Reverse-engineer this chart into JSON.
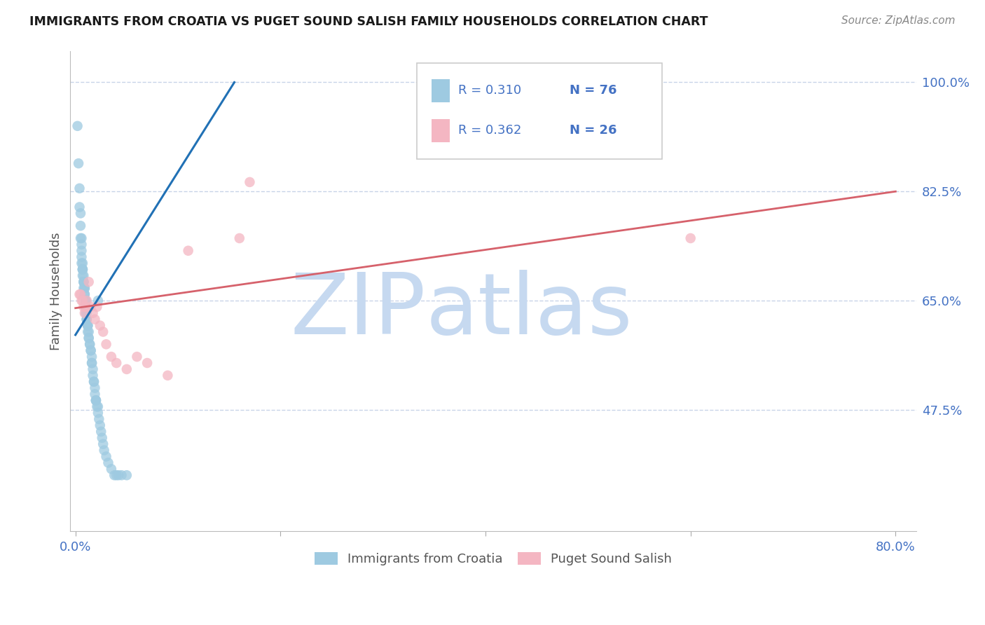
{
  "title": "IMMIGRANTS FROM CROATIA VS PUGET SOUND SALISH FAMILY HOUSEHOLDS CORRELATION CHART",
  "source": "Source: ZipAtlas.com",
  "ylabel": "Family Households",
  "ytick_vals": [
    0.475,
    0.65,
    0.825,
    1.0
  ],
  "ytick_labels": [
    "47.5%",
    "65.0%",
    "82.5%",
    "100.0%"
  ],
  "xtick_vals": [
    0.0,
    0.2,
    0.4,
    0.6,
    0.8
  ],
  "xtick_labels": [
    "0.0%",
    "",
    "",
    "",
    "80.0%"
  ],
  "xlim": [
    -0.005,
    0.82
  ],
  "ylim": [
    0.28,
    1.05
  ],
  "legend_r1": "R = 0.310",
  "legend_n1": "N = 76",
  "legend_r2": "R = 0.362",
  "legend_n2": "N = 26",
  "color_blue": "#9ecae1",
  "color_pink": "#f4b6c2",
  "color_blue_line": "#2171b5",
  "color_pink_line": "#d6616b",
  "color_axis_labels": "#4472c4",
  "watermark_zip_color": "#c6d9f0",
  "watermark_atlas_color": "#c6d9f0",
  "background_color": "#ffffff",
  "grid_color": "#c8d4e8",
  "blue_scatter_x": [
    0.002,
    0.003,
    0.004,
    0.004,
    0.005,
    0.005,
    0.005,
    0.006,
    0.006,
    0.006,
    0.006,
    0.006,
    0.007,
    0.007,
    0.007,
    0.007,
    0.007,
    0.008,
    0.008,
    0.008,
    0.008,
    0.008,
    0.009,
    0.009,
    0.009,
    0.009,
    0.01,
    0.01,
    0.01,
    0.01,
    0.01,
    0.011,
    0.011,
    0.011,
    0.011,
    0.012,
    0.012,
    0.012,
    0.012,
    0.013,
    0.013,
    0.013,
    0.014,
    0.014,
    0.015,
    0.015,
    0.016,
    0.016,
    0.016,
    0.017,
    0.017,
    0.018,
    0.018,
    0.019,
    0.019,
    0.02,
    0.02,
    0.02,
    0.021,
    0.022,
    0.022,
    0.023,
    0.024,
    0.025,
    0.026,
    0.027,
    0.028,
    0.03,
    0.032,
    0.035,
    0.038,
    0.04,
    0.042,
    0.045,
    0.05,
    0.022
  ],
  "blue_scatter_y": [
    0.93,
    0.87,
    0.83,
    0.8,
    0.79,
    0.77,
    0.75,
    0.75,
    0.74,
    0.73,
    0.72,
    0.71,
    0.71,
    0.7,
    0.7,
    0.7,
    0.69,
    0.69,
    0.68,
    0.68,
    0.68,
    0.67,
    0.67,
    0.67,
    0.66,
    0.66,
    0.65,
    0.65,
    0.64,
    0.64,
    0.63,
    0.63,
    0.62,
    0.62,
    0.62,
    0.61,
    0.61,
    0.61,
    0.6,
    0.6,
    0.59,
    0.59,
    0.58,
    0.58,
    0.57,
    0.57,
    0.56,
    0.55,
    0.55,
    0.54,
    0.53,
    0.52,
    0.52,
    0.51,
    0.5,
    0.49,
    0.49,
    0.49,
    0.48,
    0.48,
    0.47,
    0.46,
    0.45,
    0.44,
    0.43,
    0.42,
    0.41,
    0.4,
    0.39,
    0.38,
    0.37,
    0.37,
    0.37,
    0.37,
    0.37,
    0.65
  ],
  "pink_scatter_x": [
    0.004,
    0.005,
    0.006,
    0.007,
    0.008,
    0.009,
    0.01,
    0.011,
    0.013,
    0.015,
    0.017,
    0.019,
    0.021,
    0.024,
    0.027,
    0.03,
    0.035,
    0.04,
    0.05,
    0.06,
    0.07,
    0.09,
    0.11,
    0.16,
    0.17,
    0.6
  ],
  "pink_scatter_y": [
    0.66,
    0.66,
    0.65,
    0.65,
    0.64,
    0.63,
    0.64,
    0.65,
    0.68,
    0.64,
    0.63,
    0.62,
    0.64,
    0.61,
    0.6,
    0.58,
    0.56,
    0.55,
    0.54,
    0.56,
    0.55,
    0.53,
    0.73,
    0.75,
    0.84,
    0.75
  ],
  "blue_line_x": [
    0.0,
    0.155
  ],
  "blue_line_y": [
    0.595,
    1.0
  ],
  "pink_line_x": [
    0.0,
    0.8
  ],
  "pink_line_y": [
    0.638,
    0.825
  ]
}
